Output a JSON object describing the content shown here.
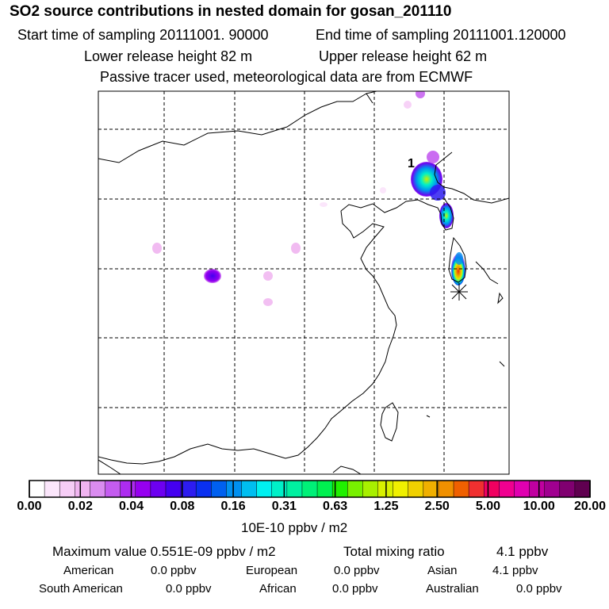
{
  "header": {
    "title": "SO2 source contributions in nested domain for gosan_201110",
    "start_time": "Start time of sampling 20111001. 90000",
    "end_time": "End time of sampling 20111001.120000",
    "lower_height": "Lower release height   82 m",
    "upper_height": "Upper release height   62 m",
    "tracer_note": "Passive tracer used, meteorological data are from ECMWF"
  },
  "map": {
    "cluster_label": "1",
    "colors": {
      "frame": "#000000",
      "coast": "#000000",
      "grid": "#000000"
    }
  },
  "colorbar": {
    "ticks": [
      "0.00",
      "0.02",
      "0.04",
      "0.08",
      "0.16",
      "0.31",
      "0.63",
      "1.25",
      "2.50",
      "5.00",
      "10.00",
      "20.00"
    ],
    "colors": [
      "#ffffff",
      "#fbe6fb",
      "#f6cdf6",
      "#f0b4f0",
      "#da8cf0",
      "#c45cf0",
      "#ad2cf0",
      "#9600f0",
      "#6d00f0",
      "#4400f0",
      "#2d1cf0",
      "#0a30f0",
      "#0060f0",
      "#0090f0",
      "#00bef0",
      "#00f0f0",
      "#00f0c8",
      "#00f0a0",
      "#00f078",
      "#00f050",
      "#20f000",
      "#78f000",
      "#a8f000",
      "#d8f000",
      "#f0f000",
      "#f0d000",
      "#f0b000",
      "#f09000",
      "#f06000",
      "#f03030",
      "#f00060",
      "#f00090",
      "#e000b0",
      "#c000a0",
      "#a00090",
      "#800070",
      "#600050"
    ],
    "unit": "10E-10 ppbv / m2"
  },
  "stats": {
    "max_value": "Maximum value  0.551E-09 ppbv / m2",
    "total_label": "Total mixing ratio",
    "total_value": "4.1 ppbv",
    "regions": [
      {
        "name": "American",
        "value": "0.0 ppbv"
      },
      {
        "name": "European",
        "value": "0.0 ppbv"
      },
      {
        "name": "Asian",
        "value": "4.1 ppbv"
      },
      {
        "name": "South American",
        "value": "0.0 ppbv"
      },
      {
        "name": "African",
        "value": "0.0 ppbv"
      },
      {
        "name": "Australian",
        "value": "0.0 ppbv"
      }
    ]
  }
}
